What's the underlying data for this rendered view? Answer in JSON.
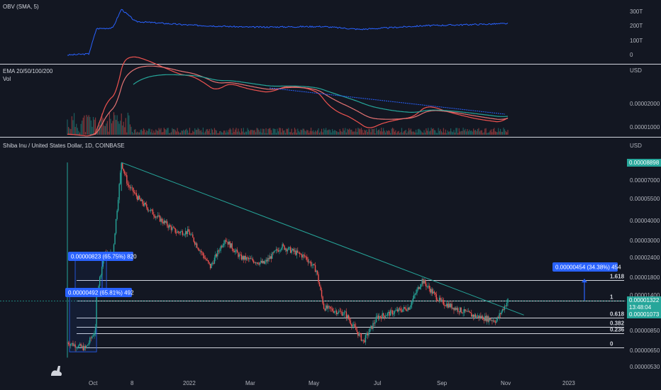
{
  "colors": {
    "bg": "#131722",
    "separator": "#d1d4dc",
    "text": "#d1d4dc",
    "axis_text": "#b2b5be",
    "up": "#26a69a",
    "down": "#ef5350",
    "obv": "#2962ff",
    "ema20": "#ef5350",
    "ema50": "#e57373",
    "ema100": "#26a69a",
    "ema200": "#2962ff",
    "fib": "#d1d4dc",
    "trendline": "#26a69a",
    "measure": "#2962ff",
    "last_price_bg": "#26a69a",
    "high_price_bg": "#26a69a"
  },
  "panes": {
    "obv": {
      "title": "OBV (SMA, 5)",
      "y_ticks": [
        "300T",
        "200T",
        "100T",
        "0"
      ]
    },
    "ema": {
      "title": "EMA 20/50/100/200",
      "subtitle": "Vol",
      "unit": "USD",
      "y_ticks": [
        "0.00002000",
        "0.00001000"
      ]
    },
    "main": {
      "title": "Shiba Inu / United States Dollar, 1D, COINBASE",
      "unit": "USD",
      "y_ticks": [
        "0.00007000",
        "0.00005500",
        "0.00004000",
        "0.00003000",
        "0.00002400",
        "0.00001800",
        "0.00001400",
        "0.00000850",
        "0.00000650",
        "0.00000530"
      ],
      "high_price_label": "0.00008898",
      "last_price_label": "0.00001322",
      "countdown_label": "13:48:04",
      "prev_price_label": "0.00001073"
    }
  },
  "x_axis": {
    "ticks": [
      "Oct",
      "8",
      "2022",
      "Mar",
      "May",
      "Jul",
      "Sep",
      "Nov",
      "2023"
    ]
  },
  "fib_levels": [
    "1.618",
    "1",
    "0.618",
    "0.382",
    "0.236",
    "0"
  ],
  "annotations": {
    "measure_top": "0.00000823 (65.75%) 820",
    "measure_bottom": "0.00000492 (65.81%) 492",
    "measure_right": "0.00000454 (34.38%) 454"
  },
  "chart_data": {
    "type": "candlestick",
    "title": "Shiba Inu / United States Dollar, 1D, COINBASE",
    "y_unit": "USD",
    "y_scale": "log",
    "x_range": [
      "2021-09-09",
      "2023-02-15"
    ],
    "y_range": [
      5.3e-06,
      8.898e-05
    ],
    "price_path": [
      {
        "date": "2021-09-09",
        "price": 7.4e-06
      },
      {
        "date": "2021-09-25",
        "price": 6.8e-06
      },
      {
        "date": "2021-10-04",
        "price": 8.8e-06
      },
      {
        "date": "2021-10-05",
        "price": 1.4e-05
      },
      {
        "date": "2021-10-12",
        "price": 2.5e-05
      },
      {
        "date": "2021-10-20",
        "price": 2.5e-05
      },
      {
        "date": "2021-10-28",
        "price": 8.89e-05
      },
      {
        "date": "2021-11-03",
        "price": 6.5e-05
      },
      {
        "date": "2021-11-15",
        "price": 5.2e-05
      },
      {
        "date": "2021-12-01",
        "price": 4.2e-05
      },
      {
        "date": "2021-12-20",
        "price": 3.4e-05
      },
      {
        "date": "2022-01-01",
        "price": 3.4e-05
      },
      {
        "date": "2022-01-22",
        "price": 2.1e-05
      },
      {
        "date": "2022-02-05",
        "price": 3.1e-05
      },
      {
        "date": "2022-02-20",
        "price": 2.4e-05
      },
      {
        "date": "2022-03-15",
        "price": 2.2e-05
      },
      {
        "date": "2022-04-01",
        "price": 2.8e-05
      },
      {
        "date": "2022-04-25",
        "price": 2.4e-05
      },
      {
        "date": "2022-05-05",
        "price": 2e-05
      },
      {
        "date": "2022-05-12",
        "price": 1.2e-05
      },
      {
        "date": "2022-06-01",
        "price": 1.1e-05
      },
      {
        "date": "2022-06-18",
        "price": 7.5e-06
      },
      {
        "date": "2022-07-01",
        "price": 1.05e-05
      },
      {
        "date": "2022-08-01",
        "price": 1.2e-05
      },
      {
        "date": "2022-08-14",
        "price": 1.75e-05
      },
      {
        "date": "2022-09-01",
        "price": 1.3e-05
      },
      {
        "date": "2022-10-01",
        "price": 1.08e-05
      },
      {
        "date": "2022-10-25",
        "price": 1e-05
      },
      {
        "date": "2022-11-05",
        "price": 1.322e-05
      }
    ],
    "horizontal_levels": [
      {
        "label": "1.618",
        "price": 1.75e-05
      },
      {
        "label": "1",
        "price": 1.322e-05
      },
      {
        "label": "0.618",
        "price": 1.04e-05
      },
      {
        "label": "0.382",
        "price": 9.2e-06
      },
      {
        "label": "0.236",
        "price": 8.4e-06
      },
      {
        "label": "0",
        "price": 6.9e-06
      }
    ],
    "trendline": [
      {
        "date": "2021-10-28",
        "price": 8.89e-05
      },
      {
        "date": "2022-11-20",
        "price": 1.08e-05
      }
    ],
    "obv_path": [
      {
        "date": "2021-09-09",
        "obv": 2
      },
      {
        "date": "2021-09-28",
        "obv": 10
      },
      {
        "date": "2021-10-05",
        "obv": 185
      },
      {
        "date": "2021-10-20",
        "obv": 190
      },
      {
        "date": "2021-10-28",
        "obv": 320
      },
      {
        "date": "2021-11-10",
        "obv": 235
      },
      {
        "date": "2022-01-01",
        "obv": 210
      },
      {
        "date": "2022-03-01",
        "obv": 195
      },
      {
        "date": "2022-05-10",
        "obv": 200
      },
      {
        "date": "2022-06-15",
        "obv": 180
      },
      {
        "date": "2022-08-15",
        "obv": 205
      },
      {
        "date": "2022-11-05",
        "obv": 220
      }
    ]
  }
}
